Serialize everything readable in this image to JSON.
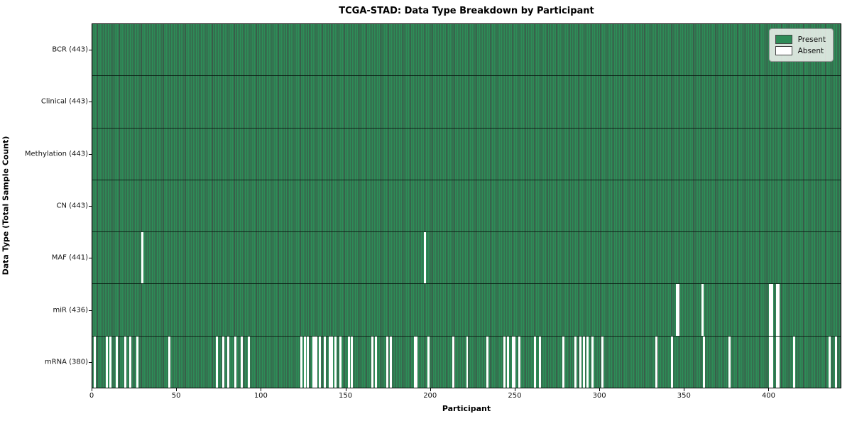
{
  "chart_data": {
    "type": "heatmap",
    "title": "TCGA-STAD: Data Type Breakdown by Participant",
    "xlabel": "Participant",
    "ylabel": "Data Type (Total Sample Count)",
    "n_participants": 443,
    "xlim": [
      0,
      443
    ],
    "x_ticks": [
      0,
      50,
      100,
      150,
      200,
      250,
      300,
      350,
      400
    ],
    "legend_position": "upper right",
    "grid": false,
    "colors": {
      "present": "#2e8b57",
      "bar_edge": "rgba(5,30,18,0.78)",
      "absent": "#ffffff",
      "row_divider": "rgba(5,25,15,0.85)"
    },
    "legend": [
      {
        "label": "Present",
        "color": "#2e8b57"
      },
      {
        "label": "Absent",
        "color": "#ffffff"
      }
    ],
    "rows": [
      {
        "name": "bcr",
        "label": "BCR (443)",
        "total": 443,
        "absent": []
      },
      {
        "name": "clinical",
        "label": "Clinical (443)",
        "total": 443,
        "absent": []
      },
      {
        "name": "methylation",
        "label": "Methylation (443)",
        "total": 443,
        "absent": []
      },
      {
        "name": "cn",
        "label": "CN (443)",
        "total": 443,
        "absent": []
      },
      {
        "name": "maf",
        "label": "MAF (441)",
        "total": 441,
        "absent": [
          29,
          196
        ]
      },
      {
        "name": "mir",
        "label": "miR (436)",
        "total": 436,
        "absent": [
          345,
          346,
          360,
          400,
          401,
          404,
          405
        ]
      },
      {
        "name": "mrna",
        "label": "mRNA (380)",
        "total": 380,
        "absent": [
          1,
          8,
          10,
          14,
          19,
          22,
          26,
          45,
          73,
          77,
          80,
          84,
          88,
          92,
          123,
          125,
          127,
          130,
          131,
          132,
          134,
          137,
          140,
          141,
          143,
          146,
          151,
          153,
          165,
          167,
          174,
          176,
          190,
          191,
          198,
          213,
          221,
          233,
          243,
          245,
          248,
          249,
          252,
          261,
          264,
          278,
          285,
          288,
          290,
          292,
          295,
          301,
          333,
          342,
          361,
          376,
          400,
          401,
          404,
          405,
          414,
          435,
          439
        ]
      }
    ]
  }
}
